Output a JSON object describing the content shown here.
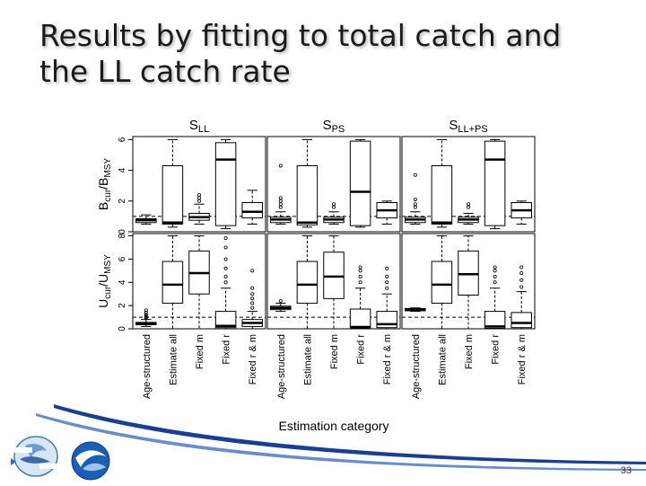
{
  "slide": {
    "title_line1": "Results by fitting to total catch and",
    "title_line2": "the LL catch rate",
    "page_number": "33",
    "logos": [
      "CIAT IATTC",
      "NOAA"
    ]
  },
  "chart_data": {
    "type": "boxplot",
    "panel_titles": [
      {
        "main": "S",
        "sub": "LL"
      },
      {
        "main": "S",
        "sub": "PS"
      },
      {
        "main": "S",
        "sub": "LL+PS"
      }
    ],
    "row_labels": [
      {
        "main1": "B",
        "sub1": "cur",
        "slash": "/",
        "main2": "B",
        "sub2": "MSY"
      },
      {
        "main1": "U",
        "sub1": "cur",
        "slash": "/",
        "main2": "U",
        "sub2": "MSY"
      }
    ],
    "categories": [
      "Age-structured",
      "Estimate all",
      "Fixed m",
      "Fixed r",
      "Fixed r & m"
    ],
    "xlabel": "Estimation category",
    "row_ylim": [
      [
        0,
        6.2
      ],
      [
        0,
        8.2
      ]
    ],
    "row_yticks": [
      [
        0,
        2,
        4,
        6
      ],
      [
        0,
        2,
        4,
        6,
        8
      ]
    ],
    "reference_lines": [
      1,
      1
    ],
    "rows": [
      [
        [
          {
            "whislo": 0.5,
            "q1": 0.6,
            "med": 0.75,
            "q3": 0.85,
            "whishi": 1.1,
            "outliers": []
          },
          {
            "whislo": 0.3,
            "q1": 0.5,
            "med": 0.6,
            "q3": 4.3,
            "whishi": 6.0,
            "outliers": []
          },
          {
            "whislo": 0.5,
            "q1": 0.75,
            "med": 0.95,
            "q3": 1.2,
            "whishi": 1.8,
            "outliers": [
              2.0,
              2.2,
              2.4
            ]
          },
          {
            "whislo": 0.2,
            "q1": 0.4,
            "med": 4.7,
            "q3": 5.8,
            "whishi": 6.0,
            "outliers": []
          },
          {
            "whislo": 0.5,
            "q1": 0.9,
            "med": 1.3,
            "q3": 1.9,
            "whishi": 2.7,
            "outliers": []
          }
        ],
        [
          {
            "whislo": 0.5,
            "q1": 0.6,
            "med": 0.8,
            "q3": 0.95,
            "whishi": 1.3,
            "outliers": [
              1.6,
              1.8,
              2.0,
              2.2,
              4.3
            ]
          },
          {
            "whislo": 0.3,
            "q1": 0.45,
            "med": 0.6,
            "q3": 4.3,
            "whishi": 6.0,
            "outliers": []
          },
          {
            "whislo": 0.5,
            "q1": 0.6,
            "med": 0.8,
            "q3": 0.95,
            "whishi": 1.3,
            "outliers": [
              1.6,
              1.8
            ]
          },
          {
            "whislo": 0.3,
            "q1": 0.4,
            "med": 2.6,
            "q3": 5.9,
            "whishi": 6.0,
            "outliers": []
          },
          {
            "whislo": 0.5,
            "q1": 0.9,
            "med": 1.4,
            "q3": 1.9,
            "whishi": 2.0,
            "outliers": []
          }
        ],
        [
          {
            "whislo": 0.5,
            "q1": 0.6,
            "med": 0.8,
            "q3": 0.95,
            "whishi": 1.3,
            "outliers": [
              1.6,
              1.8,
              2.1,
              3.7
            ]
          },
          {
            "whislo": 0.3,
            "q1": 0.5,
            "med": 0.6,
            "q3": 4.3,
            "whishi": 6.0,
            "outliers": []
          },
          {
            "whislo": 0.5,
            "q1": 0.6,
            "med": 0.8,
            "q3": 0.95,
            "whishi": 1.2,
            "outliers": [
              1.6,
              1.8
            ]
          },
          {
            "whislo": 0.2,
            "q1": 0.4,
            "med": 4.7,
            "q3": 5.9,
            "whishi": 6.0,
            "outliers": []
          },
          {
            "whislo": 0.5,
            "q1": 0.9,
            "med": 1.4,
            "q3": 1.9,
            "whishi": 2.0,
            "outliers": []
          }
        ]
      ],
      [
        [
          {
            "whislo": 0.2,
            "q1": 0.35,
            "med": 0.45,
            "q3": 0.55,
            "whishi": 0.8,
            "outliers": [
              0.9,
              1.0,
              1.1,
              1.2,
              1.4,
              1.6
            ]
          },
          {
            "whislo": 0.0,
            "q1": 2.2,
            "med": 3.8,
            "q3": 5.8,
            "whishi": 8.0,
            "outliers": []
          },
          {
            "whislo": 0.0,
            "q1": 3.0,
            "med": 4.8,
            "q3": 6.7,
            "whishi": 8.0,
            "outliers": []
          },
          {
            "whislo": 0.0,
            "q1": 0.1,
            "med": 0.25,
            "q3": 1.5,
            "whishi": 3.5,
            "outliers": [
              4.0,
              4.5,
              5.2,
              6.0,
              7.0,
              7.8
            ]
          },
          {
            "whislo": 0.0,
            "q1": 0.2,
            "med": 0.5,
            "q3": 0.8,
            "whishi": 1.5,
            "outliers": [
              1.8,
              2.2,
              2.6,
              3.0,
              3.5,
              5.0
            ]
          }
        ],
        [
          {
            "whislo": 1.5,
            "q1": 1.65,
            "med": 1.8,
            "q3": 1.95,
            "whishi": 2.2,
            "outliers": [
              2.4
            ]
          },
          {
            "whislo": 0.0,
            "q1": 2.2,
            "med": 3.8,
            "q3": 5.8,
            "whishi": 8.0,
            "outliers": []
          },
          {
            "whislo": 0.0,
            "q1": 2.6,
            "med": 4.5,
            "q3": 6.6,
            "whishi": 8.0,
            "outliers": []
          },
          {
            "whislo": 0.0,
            "q1": 0.05,
            "med": 0.15,
            "q3": 1.7,
            "whishi": 3.5,
            "outliers": [
              4.0,
              4.5,
              5.0,
              5.3
            ]
          },
          {
            "whislo": 0.0,
            "q1": 0.1,
            "med": 0.4,
            "q3": 1.5,
            "whishi": 3.0,
            "outliers": [
              3.5,
              4.0,
              4.5,
              5.2
            ]
          }
        ],
        [
          {
            "whislo": 1.5,
            "q1": 1.55,
            "med": 1.65,
            "q3": 1.75,
            "whishi": 1.8,
            "outliers": []
          },
          {
            "whislo": 0.0,
            "q1": 2.2,
            "med": 3.8,
            "q3": 5.8,
            "whishi": 8.0,
            "outliers": []
          },
          {
            "whislo": 0.0,
            "q1": 2.9,
            "med": 4.7,
            "q3": 6.7,
            "whishi": 8.0,
            "outliers": []
          },
          {
            "whislo": 0.0,
            "q1": 0.05,
            "med": 0.2,
            "q3": 1.5,
            "whishi": 3.5,
            "outliers": [
              4.0,
              4.5,
              5.0,
              5.3
            ]
          },
          {
            "whislo": 0.0,
            "q1": 0.1,
            "med": 0.5,
            "q3": 1.4,
            "whishi": 3.2,
            "outliers": [
              3.6,
              4.2,
              4.8,
              5.3
            ]
          }
        ]
      ]
    ]
  },
  "colors": {
    "box": "#000000",
    "reference": "#000000",
    "swoosh": "#1a3f8f"
  }
}
